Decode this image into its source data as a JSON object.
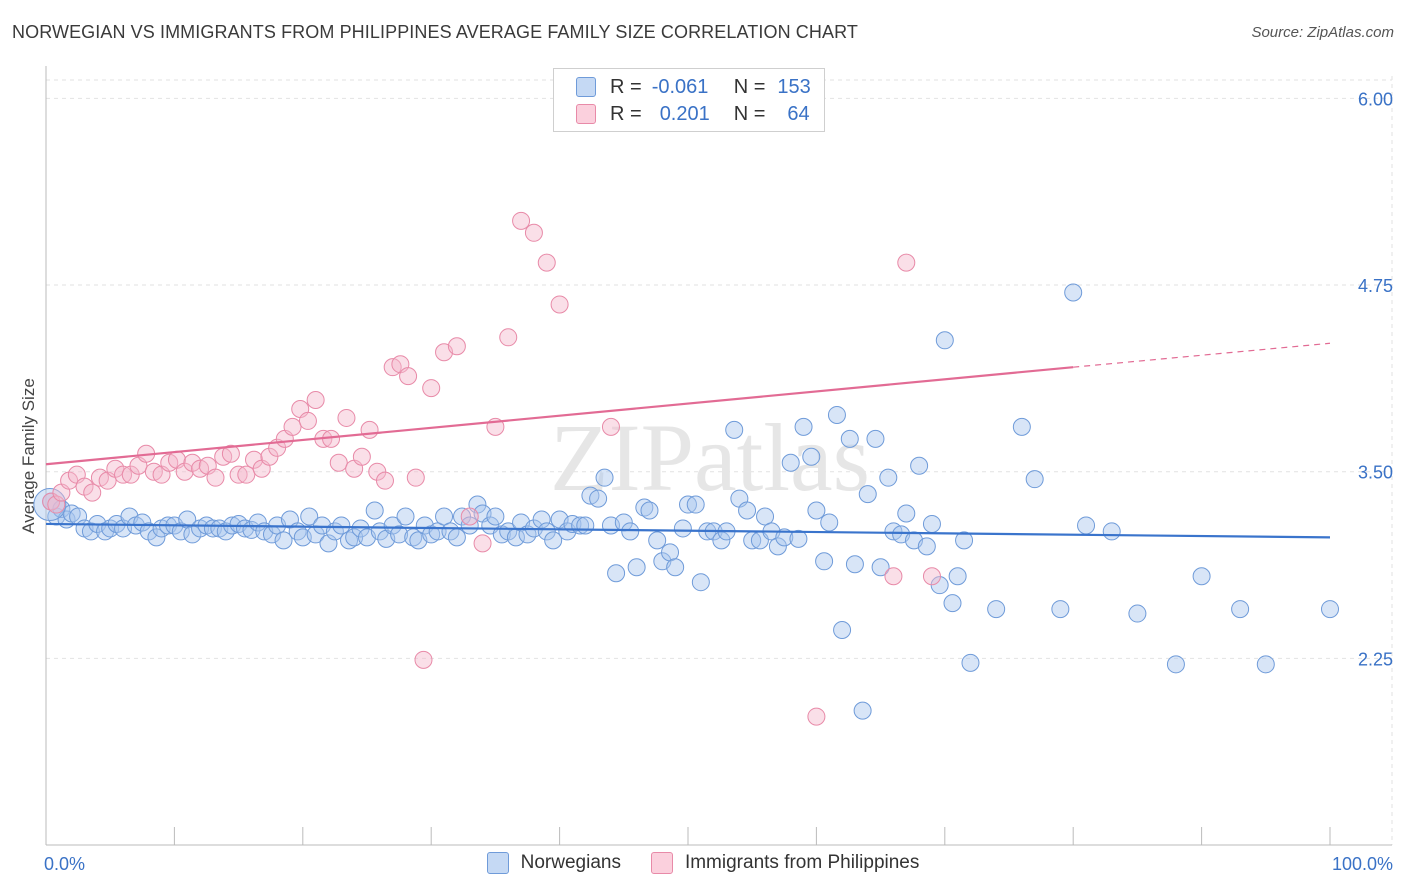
{
  "title": "NORWEGIAN VS IMMIGRANTS FROM PHILIPPINES AVERAGE FAMILY SIZE CORRELATION CHART",
  "source": "Source: ZipAtlas.com",
  "watermark": "ZIPatlas",
  "legend_top": {
    "rows": [
      {
        "r_label": "R =",
        "r_value": "-0.061",
        "n_label": "N =",
        "n_value": "153"
      },
      {
        "r_label": "R =",
        "r_value": "0.201",
        "n_label": "N =",
        "n_value": "64"
      }
    ]
  },
  "chart_data": {
    "type": "scatter",
    "title": "NORWEGIAN VS IMMIGRANTS FROM PHILIPPINES AVERAGE FAMILY SIZE CORRELATION CHART",
    "xlabel": "",
    "ylabel": "Average Family Size",
    "xlim": [
      0,
      100
    ],
    "ylim": [
      1.0,
      6.15
    ],
    "x_tick_labels": [
      "0.0%",
      "100.0%"
    ],
    "y_ticks": [
      2.25,
      3.5,
      4.75,
      6.0
    ],
    "y_tick_labels": [
      "2.25",
      "3.50",
      "4.75",
      "6.00"
    ],
    "grid": true,
    "colors": {
      "norwegians": "#a9c6ee",
      "norwegians_line": "#3a74cc",
      "philippines": "#f5b8cb",
      "philippines_line": "#e26b94",
      "axis_label": "#3a72c6"
    },
    "series": [
      {
        "name": "Norwegians",
        "trend": {
          "x0": 0,
          "y0": 3.15,
          "x1": 100,
          "y1": 3.06
        },
        "points": [
          [
            0.4,
            3.3
          ],
          [
            0.8,
            3.2
          ],
          [
            1.2,
            3.25
          ],
          [
            1.6,
            3.18
          ],
          [
            2.0,
            3.22
          ],
          [
            2.5,
            3.2
          ],
          [
            3.0,
            3.12
          ],
          [
            3.5,
            3.1
          ],
          [
            4.0,
            3.15
          ],
          [
            4.6,
            3.1
          ],
          [
            5.0,
            3.12
          ],
          [
            5.5,
            3.15
          ],
          [
            6.0,
            3.12
          ],
          [
            6.5,
            3.2
          ],
          [
            7.0,
            3.14
          ],
          [
            7.5,
            3.16
          ],
          [
            8.0,
            3.1
          ],
          [
            8.6,
            3.06
          ],
          [
            9.0,
            3.12
          ],
          [
            9.5,
            3.14
          ],
          [
            10.0,
            3.14
          ],
          [
            10.5,
            3.1
          ],
          [
            11.0,
            3.18
          ],
          [
            11.4,
            3.08
          ],
          [
            12.0,
            3.12
          ],
          [
            12.5,
            3.14
          ],
          [
            13.0,
            3.12
          ],
          [
            13.5,
            3.12
          ],
          [
            14.0,
            3.1
          ],
          [
            14.5,
            3.14
          ],
          [
            15.0,
            3.15
          ],
          [
            15.5,
            3.12
          ],
          [
            16.0,
            3.11
          ],
          [
            16.5,
            3.16
          ],
          [
            17.0,
            3.1
          ],
          [
            17.6,
            3.08
          ],
          [
            18.0,
            3.14
          ],
          [
            18.5,
            3.04
          ],
          [
            19.0,
            3.18
          ],
          [
            19.6,
            3.1
          ],
          [
            20.0,
            3.06
          ],
          [
            20.5,
            3.2
          ],
          [
            21.0,
            3.08
          ],
          [
            21.5,
            3.14
          ],
          [
            22.0,
            3.02
          ],
          [
            22.5,
            3.1
          ],
          [
            23.0,
            3.14
          ],
          [
            23.6,
            3.04
          ],
          [
            24.0,
            3.06
          ],
          [
            24.5,
            3.12
          ],
          [
            25.0,
            3.06
          ],
          [
            25.6,
            3.24
          ],
          [
            26.0,
            3.1
          ],
          [
            26.5,
            3.05
          ],
          [
            27.0,
            3.14
          ],
          [
            27.5,
            3.08
          ],
          [
            28.0,
            3.2
          ],
          [
            28.6,
            3.06
          ],
          [
            29.0,
            3.04
          ],
          [
            29.5,
            3.14
          ],
          [
            30.0,
            3.08
          ],
          [
            30.5,
            3.1
          ],
          [
            31.0,
            3.2
          ],
          [
            31.5,
            3.1
          ],
          [
            32.0,
            3.06
          ],
          [
            32.4,
            3.2
          ],
          [
            33.0,
            3.14
          ],
          [
            33.6,
            3.28
          ],
          [
            34.0,
            3.22
          ],
          [
            34.6,
            3.14
          ],
          [
            35.0,
            3.2
          ],
          [
            35.5,
            3.08
          ],
          [
            36.0,
            3.1
          ],
          [
            36.6,
            3.06
          ],
          [
            37.0,
            3.16
          ],
          [
            37.5,
            3.08
          ],
          [
            38.0,
            3.12
          ],
          [
            38.6,
            3.18
          ],
          [
            39.0,
            3.1
          ],
          [
            39.5,
            3.04
          ],
          [
            40.0,
            3.18
          ],
          [
            40.6,
            3.1
          ],
          [
            41.0,
            3.15
          ],
          [
            41.6,
            3.14
          ],
          [
            42.0,
            3.14
          ],
          [
            42.4,
            3.34
          ],
          [
            43.0,
            3.32
          ],
          [
            43.5,
            3.46
          ],
          [
            44.0,
            3.14
          ],
          [
            44.4,
            2.82
          ],
          [
            45.0,
            3.16
          ],
          [
            45.5,
            3.1
          ],
          [
            46.0,
            2.86
          ],
          [
            46.6,
            3.26
          ],
          [
            47.0,
            3.24
          ],
          [
            47.6,
            3.04
          ],
          [
            48.0,
            2.9
          ],
          [
            48.6,
            2.96
          ],
          [
            49.0,
            2.86
          ],
          [
            49.6,
            3.12
          ],
          [
            50.0,
            3.28
          ],
          [
            50.6,
            3.28
          ],
          [
            51.0,
            2.76
          ],
          [
            51.5,
            3.1
          ],
          [
            52.0,
            3.1
          ],
          [
            52.6,
            3.04
          ],
          [
            53.0,
            3.1
          ],
          [
            53.6,
            3.78
          ],
          [
            54.0,
            3.32
          ],
          [
            54.6,
            3.24
          ],
          [
            55.0,
            3.04
          ],
          [
            55.6,
            3.04
          ],
          [
            56.0,
            3.2
          ],
          [
            56.5,
            3.1
          ],
          [
            57.0,
            3.0
          ],
          [
            57.5,
            3.06
          ],
          [
            58.0,
            3.56
          ],
          [
            58.6,
            3.05
          ],
          [
            59.0,
            3.8
          ],
          [
            59.6,
            3.6
          ],
          [
            60.0,
            3.24
          ],
          [
            60.6,
            2.9
          ],
          [
            61.0,
            3.16
          ],
          [
            61.6,
            3.88
          ],
          [
            62.0,
            2.44
          ],
          [
            62.6,
            3.72
          ],
          [
            63.0,
            2.88
          ],
          [
            63.6,
            1.9
          ],
          [
            64.0,
            3.35
          ],
          [
            64.6,
            3.72
          ],
          [
            65.0,
            2.86
          ],
          [
            65.6,
            3.46
          ],
          [
            66.0,
            3.1
          ],
          [
            66.6,
            3.08
          ],
          [
            67.0,
            3.22
          ],
          [
            67.6,
            3.04
          ],
          [
            68.0,
            3.54
          ],
          [
            68.6,
            3.0
          ],
          [
            69.0,
            3.15
          ],
          [
            69.6,
            2.74
          ],
          [
            70.0,
            4.38
          ],
          [
            70.6,
            2.62
          ],
          [
            71.0,
            2.8
          ],
          [
            71.5,
            3.04
          ],
          [
            72.0,
            2.22
          ],
          [
            74.0,
            2.58
          ],
          [
            76.0,
            3.8
          ],
          [
            77.0,
            3.45
          ],
          [
            80.0,
            4.7
          ],
          [
            81.0,
            3.14
          ],
          [
            83.0,
            3.1
          ],
          [
            90.0,
            2.8
          ],
          [
            100.0,
            2.58
          ],
          [
            85.0,
            2.55
          ],
          [
            88.0,
            2.21
          ],
          [
            79.0,
            2.58
          ],
          [
            93.0,
            2.58
          ],
          [
            95.0,
            2.21
          ]
        ]
      },
      {
        "name": "Immigrants from Philippines",
        "trend": {
          "x0": 0,
          "y0": 3.55,
          "x1": 80,
          "y1": 4.2,
          "dash_x1": 100,
          "dash_y1": 4.36
        },
        "points": [
          [
            0.4,
            3.3
          ],
          [
            0.8,
            3.28
          ],
          [
            1.2,
            3.36
          ],
          [
            1.8,
            3.44
          ],
          [
            2.4,
            3.48
          ],
          [
            3.0,
            3.4
          ],
          [
            3.6,
            3.36
          ],
          [
            4.2,
            3.46
          ],
          [
            4.8,
            3.44
          ],
          [
            5.4,
            3.52
          ],
          [
            6.0,
            3.48
          ],
          [
            6.6,
            3.48
          ],
          [
            7.2,
            3.54
          ],
          [
            7.8,
            3.62
          ],
          [
            8.4,
            3.5
          ],
          [
            9.0,
            3.48
          ],
          [
            9.6,
            3.56
          ],
          [
            10.2,
            3.58
          ],
          [
            10.8,
            3.5
          ],
          [
            11.4,
            3.56
          ],
          [
            12.0,
            3.52
          ],
          [
            12.6,
            3.54
          ],
          [
            13.2,
            3.46
          ],
          [
            13.8,
            3.6
          ],
          [
            14.4,
            3.62
          ],
          [
            15.0,
            3.48
          ],
          [
            15.6,
            3.48
          ],
          [
            16.2,
            3.58
          ],
          [
            16.8,
            3.52
          ],
          [
            17.4,
            3.6
          ],
          [
            18.0,
            3.66
          ],
          [
            18.6,
            3.72
          ],
          [
            19.2,
            3.8
          ],
          [
            19.8,
            3.92
          ],
          [
            20.4,
            3.84
          ],
          [
            21.0,
            3.98
          ],
          [
            21.6,
            3.72
          ],
          [
            22.2,
            3.72
          ],
          [
            22.8,
            3.56
          ],
          [
            23.4,
            3.86
          ],
          [
            24.0,
            3.52
          ],
          [
            24.6,
            3.6
          ],
          [
            25.2,
            3.78
          ],
          [
            25.8,
            3.5
          ],
          [
            26.4,
            3.44
          ],
          [
            27.0,
            4.2
          ],
          [
            27.6,
            4.22
          ],
          [
            28.2,
            4.14
          ],
          [
            28.8,
            3.46
          ],
          [
            29.4,
            2.24
          ],
          [
            30.0,
            4.06
          ],
          [
            31.0,
            4.3
          ],
          [
            32.0,
            4.34
          ],
          [
            33.0,
            3.2
          ],
          [
            34.0,
            3.02
          ],
          [
            35.0,
            3.8
          ],
          [
            36.0,
            4.4
          ],
          [
            37.0,
            5.18
          ],
          [
            38.0,
            5.1
          ],
          [
            39.0,
            4.9
          ],
          [
            40.0,
            4.62
          ],
          [
            44.0,
            3.8
          ],
          [
            60.0,
            1.86
          ],
          [
            66.0,
            2.8
          ],
          [
            67.0,
            4.9
          ],
          [
            69.0,
            2.8
          ]
        ]
      }
    ]
  },
  "bottom_legend": [
    {
      "label": "Norwegians"
    },
    {
      "label": "Immigrants from Philippines"
    }
  ]
}
